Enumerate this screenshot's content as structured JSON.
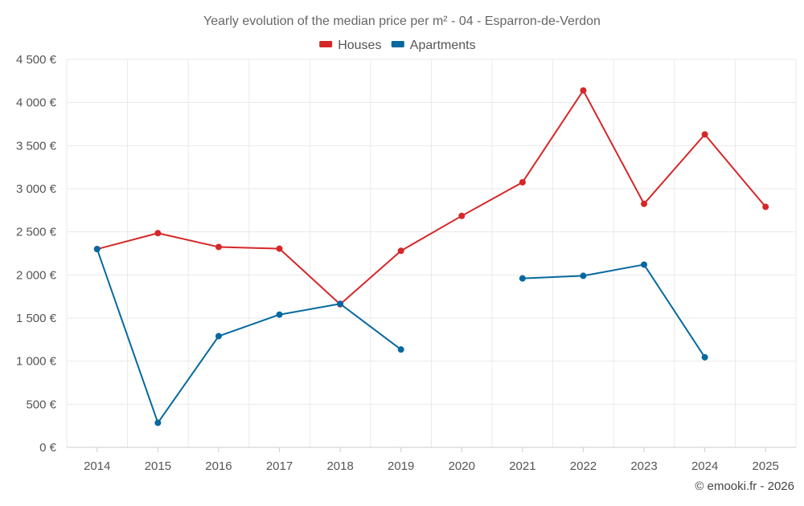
{
  "chart_data": {
    "type": "line",
    "title": "Yearly evolution of the median price per m² - 04 - Esparron-de-Verdon",
    "categories": [
      "2014",
      "2015",
      "2016",
      "2017",
      "2018",
      "2019",
      "2020",
      "2021",
      "2022",
      "2023",
      "2024",
      "2025"
    ],
    "series": [
      {
        "name": "Houses",
        "color": "#d62728",
        "values": [
          2300,
          2485,
          2325,
          2305,
          1660,
          2280,
          2685,
          3075,
          4140,
          2825,
          3630,
          2790
        ]
      },
      {
        "name": "Apartments",
        "color": "#05699f",
        "values": [
          2300,
          285,
          1290,
          1540,
          1665,
          1135,
          null,
          1960,
          1990,
          2120,
          1045,
          null
        ]
      }
    ],
    "ylim": [
      0,
      4500
    ],
    "yticks": [
      0,
      500,
      1000,
      1500,
      2000,
      2500,
      3000,
      3500,
      4000,
      4500
    ],
    "ytick_labels": [
      "0 €",
      "500 €",
      "1 000 €",
      "1 500 €",
      "2 000 €",
      "2 500 €",
      "3 000 €",
      "3 500 €",
      "4 000 €",
      "4 500 €"
    ],
    "xlabel": "",
    "ylabel": "",
    "grid": true,
    "legend_position": "top-center"
  },
  "credit": "© emooki.fr - 2026"
}
